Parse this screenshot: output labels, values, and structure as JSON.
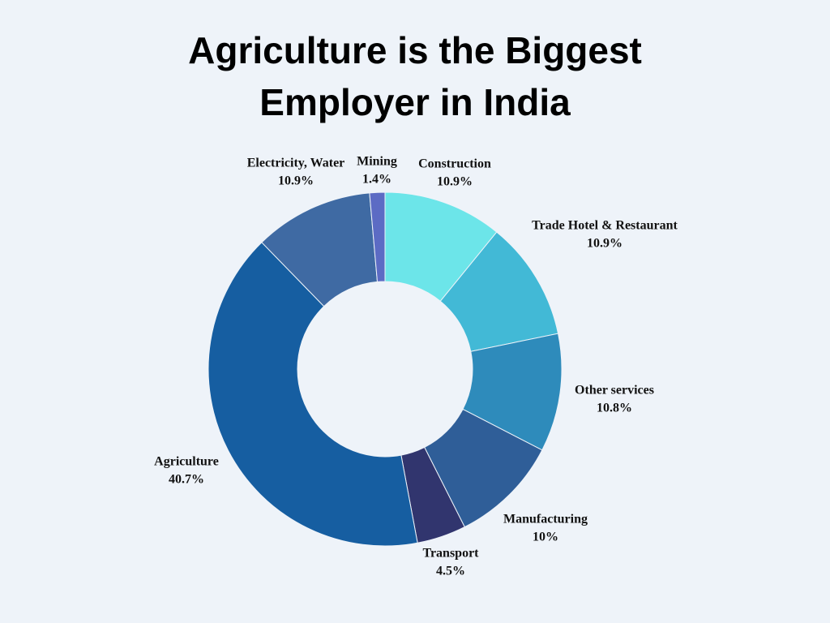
{
  "chart_data": {
    "type": "donut",
    "title": "Agriculture is the Biggest Employer in India",
    "categories": [
      "Construction",
      "Trade Hotel & Restaurant",
      "Other services",
      "Manufacturing",
      "Transport",
      "Agriculture",
      "Electricity, Water",
      "Mining"
    ],
    "values": [
      10.9,
      10.9,
      10.8,
      10,
      4.5,
      40.7,
      10.9,
      1.4
    ],
    "value_labels": [
      "10.9%",
      "10.9%",
      "10.8%",
      "10%",
      "4.5%",
      "40.7%",
      "10.9%",
      "1.4%"
    ],
    "colors": [
      "#6ce5e9",
      "#42b9d6",
      "#2e8bbb",
      "#2f5e98",
      "#31356e",
      "#165ea1",
      "#3f6aa3",
      "#5c6bc4"
    ]
  }
}
